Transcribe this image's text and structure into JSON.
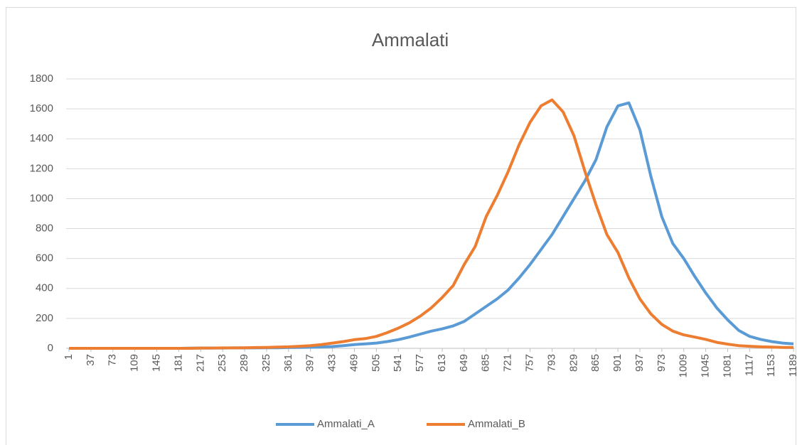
{
  "chart_data": {
    "type": "line",
    "title": "Ammalati",
    "x": [
      1,
      19,
      37,
      55,
      73,
      91,
      109,
      127,
      145,
      163,
      181,
      199,
      217,
      235,
      253,
      271,
      289,
      307,
      325,
      343,
      361,
      379,
      397,
      415,
      433,
      451,
      469,
      487,
      505,
      523,
      541,
      559,
      577,
      595,
      613,
      631,
      649,
      667,
      685,
      703,
      721,
      739,
      757,
      775,
      793,
      811,
      829,
      847,
      865,
      883,
      901,
      919,
      937,
      955,
      973,
      991,
      1009,
      1027,
      1045,
      1063,
      1081,
      1099,
      1117,
      1135,
      1153,
      1171,
      1189
    ],
    "series": [
      {
        "name": "Ammalati_A",
        "color": "#5b9bd5",
        "values": [
          0,
          0,
          0,
          0,
          0,
          0,
          0,
          0,
          0,
          0,
          0,
          1,
          2,
          2,
          2,
          3,
          3,
          3,
          4,
          4,
          5,
          6,
          7,
          9,
          12,
          18,
          25,
          30,
          35,
          45,
          58,
          75,
          95,
          115,
          130,
          150,
          180,
          230,
          280,
          330,
          390,
          470,
          560,
          660,
          760,
          880,
          1000,
          1120,
          1260,
          1480,
          1620,
          1640,
          1460,
          1150,
          880,
          700,
          600,
          480,
          370,
          270,
          190,
          120,
          80,
          60,
          45,
          35,
          30
        ]
      },
      {
        "name": "Ammalati_B",
        "color": "#ed7d31",
        "values": [
          0,
          0,
          0,
          0,
          0,
          0,
          0,
          0,
          0,
          0,
          0,
          0,
          2,
          2,
          3,
          3,
          4,
          5,
          6,
          8,
          10,
          14,
          18,
          25,
          35,
          45,
          58,
          65,
          80,
          105,
          135,
          170,
          215,
          270,
          340,
          420,
          560,
          680,
          880,
          1020,
          1180,
          1360,
          1510,
          1620,
          1660,
          1580,
          1420,
          1180,
          960,
          760,
          640,
          470,
          330,
          230,
          160,
          115,
          90,
          75,
          60,
          40,
          28,
          18,
          14,
          10,
          8,
          6,
          5
        ]
      }
    ],
    "xlim": [
      1,
      1190
    ],
    "xticks": [
      1,
      37,
      73,
      109,
      145,
      181,
      217,
      253,
      289,
      325,
      361,
      397,
      433,
      469,
      505,
      541,
      577,
      613,
      649,
      685,
      721,
      757,
      793,
      829,
      865,
      901,
      937,
      973,
      1009,
      1045,
      1081,
      1117,
      1153,
      1189
    ],
    "ylim": [
      0,
      1800
    ],
    "yticks": [
      0,
      200,
      400,
      600,
      800,
      1000,
      1200,
      1400,
      1600,
      1800
    ],
    "grid": true,
    "legend": "bottom"
  }
}
